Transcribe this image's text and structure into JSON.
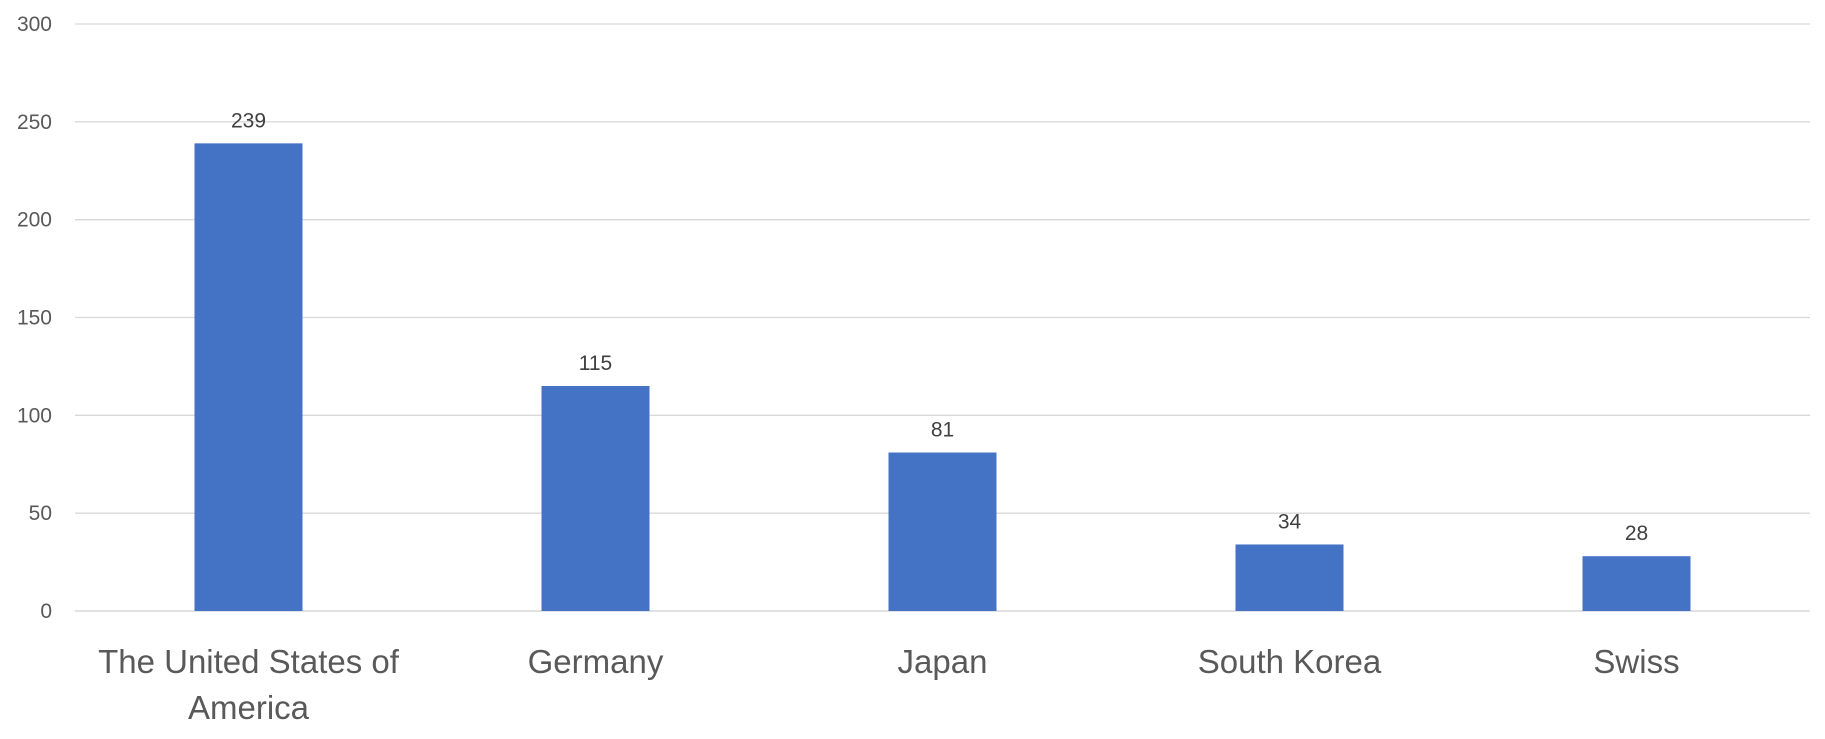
{
  "chart_data": {
    "type": "bar",
    "categories": [
      "The United States of America",
      "Germany",
      "Japan",
      "South Korea",
      "Swiss"
    ],
    "category_lines": [
      [
        "The United States of",
        "America"
      ],
      [
        "Germany"
      ],
      [
        "Japan"
      ],
      [
        "South Korea"
      ],
      [
        "Swiss"
      ]
    ],
    "values": [
      239,
      115,
      81,
      34,
      28
    ],
    "data_labels": [
      "239",
      "115",
      "81",
      "34",
      "28"
    ],
    "title": "",
    "xlabel": "",
    "ylabel": "",
    "ylim": [
      0,
      300
    ],
    "yticks": [
      "0",
      "50",
      "100",
      "150",
      "200",
      "250",
      "300"
    ],
    "grid": true,
    "legend": "none",
    "bar_color": "#4472C4"
  }
}
